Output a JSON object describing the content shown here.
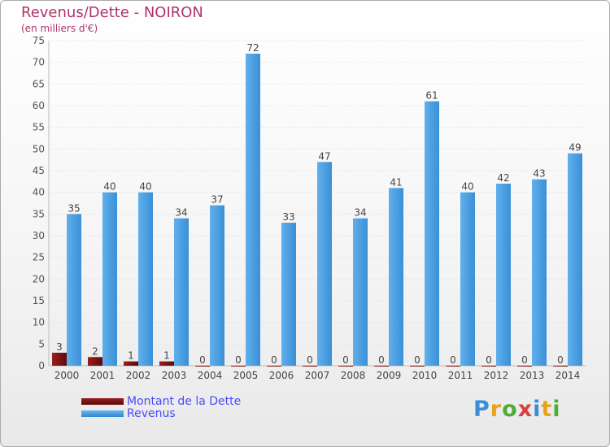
{
  "chart_data": {
    "type": "bar",
    "title": "Revenus/Dette - NOIRON",
    "subtitle": "(en milliers d'€)",
    "categories": [
      "2000",
      "2001",
      "2002",
      "2003",
      "2004",
      "2005",
      "2006",
      "2007",
      "2008",
      "2009",
      "2010",
      "2011",
      "2012",
      "2013",
      "2014"
    ],
    "series": [
      {
        "name": "Montant de la Dette",
        "values": [
          3,
          2,
          1,
          1,
          0,
          0,
          0,
          0,
          0,
          0,
          0,
          0,
          0,
          0,
          0
        ],
        "color": "#6e0d0d"
      },
      {
        "name": "Revenus",
        "values": [
          35,
          40,
          40,
          34,
          37,
          72,
          33,
          47,
          34,
          41,
          61,
          40,
          42,
          43,
          49
        ],
        "color": "#4a9fe0"
      }
    ],
    "ylim": [
      0,
      75
    ],
    "yticks": [
      0,
      5,
      10,
      15,
      20,
      25,
      30,
      35,
      40,
      45,
      50,
      55,
      60,
      65,
      70,
      75
    ],
    "grid": true
  },
  "legend": {
    "debt_label": "Montant de la Dette",
    "revenue_label": "Revenus"
  },
  "logo": {
    "letters": [
      "P",
      "r",
      "o",
      "x",
      "i",
      "t",
      "i"
    ]
  },
  "colors": {
    "title": "#b0336b",
    "legend_text": "#4a4aff",
    "debt": "#6e0d0d",
    "revenue": "#4a9fe0"
  }
}
